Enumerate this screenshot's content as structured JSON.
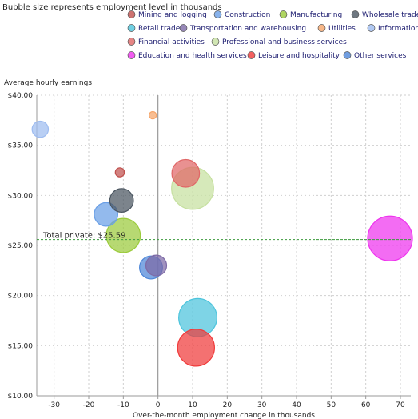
{
  "note": "Bubble size represents employment level in thousands",
  "chart_data": {
    "type": "scatter",
    "subtype": "bubble",
    "xlabel": "Over-the-month employment change in thousands",
    "ylabel": "Average hourly earnings",
    "xlim": [
      -35,
      73
    ],
    "ylim": [
      10,
      40
    ],
    "x_ticks": [
      "-30",
      "-20",
      "-10",
      "0",
      "10",
      "20",
      "30",
      "40",
      "50",
      "60",
      "70"
    ],
    "y_ticks": [
      "$10.00",
      "$15.00",
      "$20.00",
      "$25.00",
      "$30.00",
      "$35.00",
      "$40.00"
    ],
    "grid": true,
    "reference_line": {
      "label": "Total private: $25.59",
      "y": 25.59
    },
    "series": [
      {
        "name": "Mining and logging",
        "color": "#c0504d",
        "x": -11,
        "y": 32.3,
        "size": 850
      },
      {
        "name": "Construction",
        "color": "#6a9fe6",
        "x": -15,
        "y": 28.1,
        "size": 5700
      },
      {
        "name": "Manufacturing",
        "color": "#9bcb3b",
        "x": -10,
        "y": 26.0,
        "size": 11900
      },
      {
        "name": "Wholesale trade",
        "color": "#4a5560",
        "x": -10.5,
        "y": 29.5,
        "size": 5700
      },
      {
        "name": "Retail trade",
        "color": "#4cc4dc",
        "x": 11.5,
        "y": 17.8,
        "size": 14900
      },
      {
        "name": "Transportation and warehousing",
        "color": "#7d6aa6",
        "x": -0.5,
        "y": 23.0,
        "size": 4400
      },
      {
        "name": "Utilities",
        "color": "#f5a56a",
        "x": -1.5,
        "y": 38.0,
        "size": 550
      },
      {
        "name": "Information",
        "color": "#9ebcf0",
        "x": -34,
        "y": 36.6,
        "size": 2700
      },
      {
        "name": "Financial activities",
        "color": "#e06666",
        "x": 8,
        "y": 32.2,
        "size": 7800
      },
      {
        "name": "Professional and business services",
        "color": "#c6e0a0",
        "x": 10,
        "y": 30.7,
        "size": 18100
      },
      {
        "name": "Education and health services",
        "color": "#ee33ee",
        "x": 67,
        "y": 25.7,
        "size": 20500
      },
      {
        "name": "Leisure and hospitality",
        "color": "#f03a3a",
        "x": 11,
        "y": 14.8,
        "size": 13900
      },
      {
        "name": "Other services",
        "color": "#4d86d8",
        "x": -2,
        "y": 22.8,
        "size": 5400
      }
    ]
  }
}
